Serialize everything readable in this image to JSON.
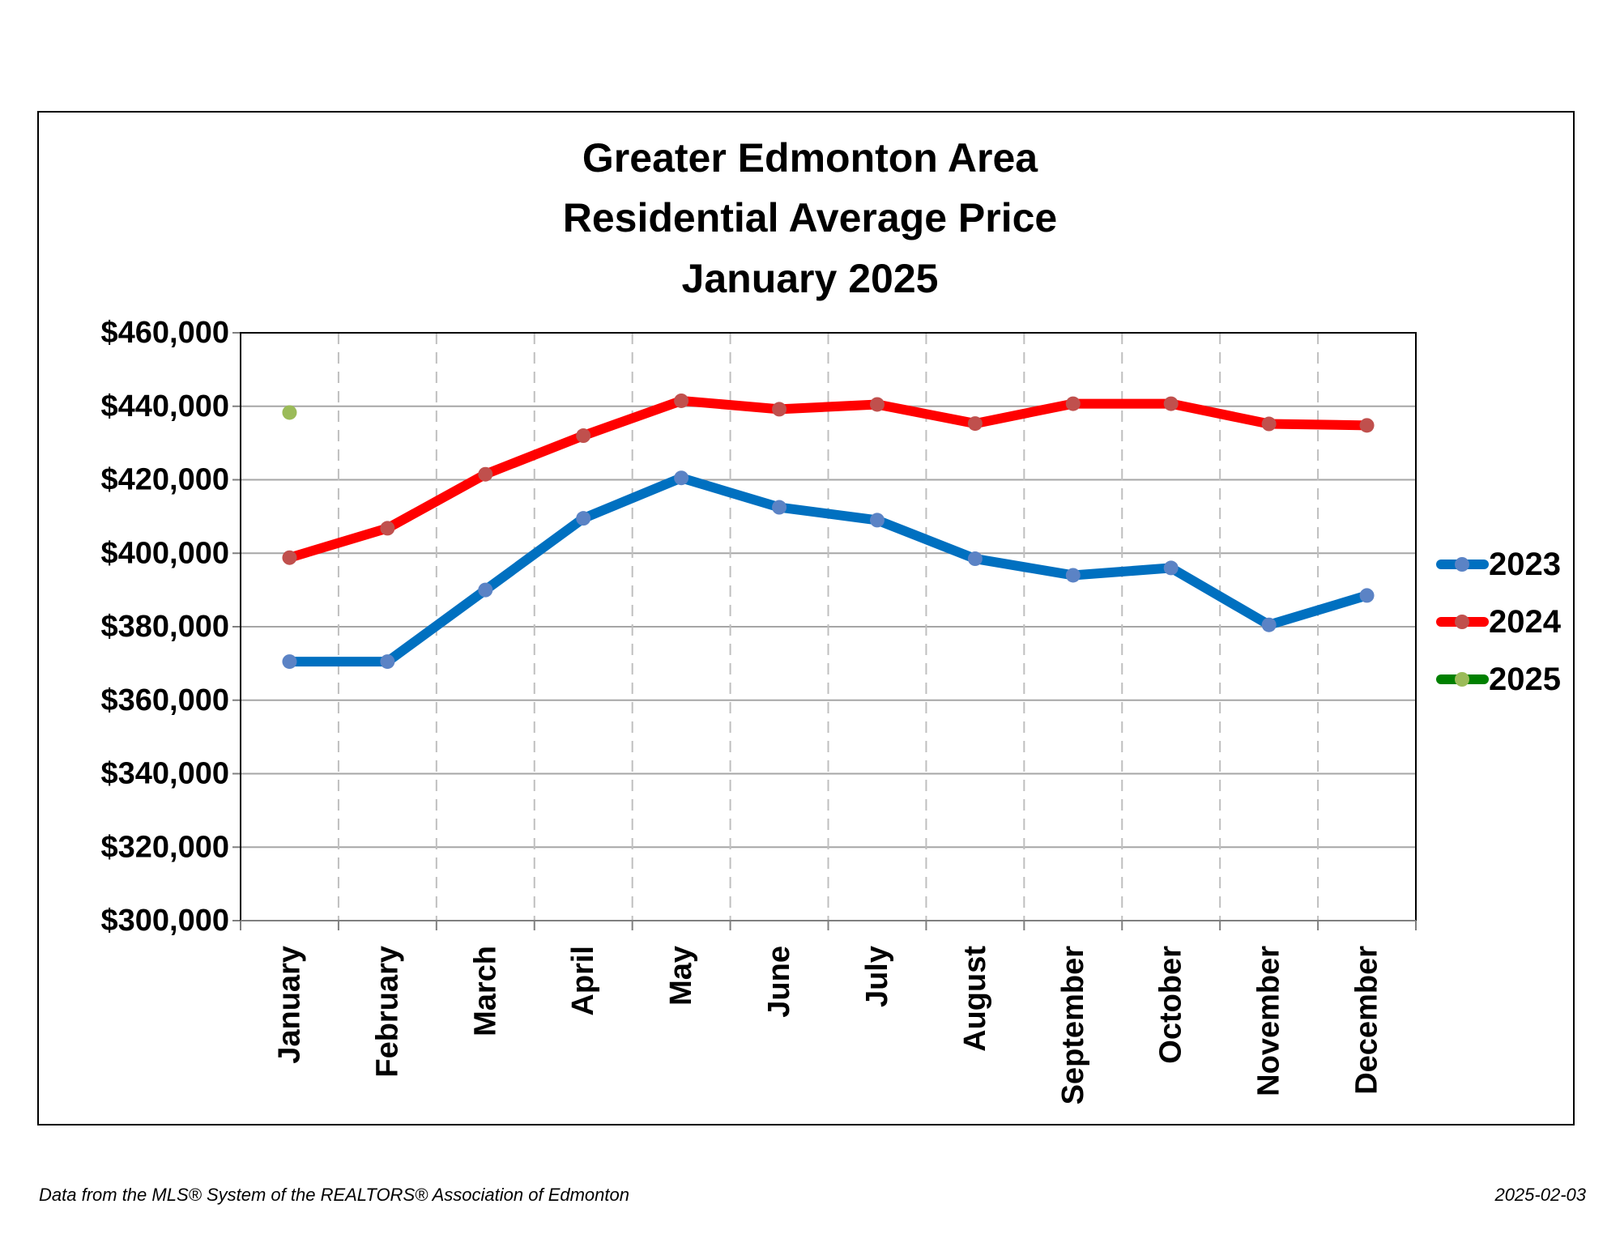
{
  "footer": {
    "source": "Data from the MLS® System of the REALTORS® Association of Edmonton",
    "date": "2025-02-03"
  },
  "chart_data": {
    "type": "line",
    "title_lines": [
      "Greater Edmonton Area",
      "Residential Average Price",
      "January 2025"
    ],
    "xlabel": "",
    "ylabel": "",
    "categories": [
      "January",
      "February",
      "March",
      "April",
      "May",
      "June",
      "July",
      "August",
      "September",
      "October",
      "November",
      "December"
    ],
    "ylim": [
      300000,
      460000
    ],
    "y_ticks": [
      300000,
      320000,
      340000,
      360000,
      380000,
      400000,
      420000,
      440000,
      460000
    ],
    "y_tick_labels": [
      "$300,000",
      "$320,000",
      "$340,000",
      "$360,000",
      "$380,000",
      "$400,000",
      "$420,000",
      "$440,000",
      "$460,000"
    ],
    "grid": {
      "horizontal": "solid",
      "vertical": "dashed"
    },
    "legend_position": "right",
    "series": [
      {
        "name": "2023",
        "line_color": "#0070C0",
        "marker_color": "#5B83C5",
        "values": [
          370500,
          370500,
          390000,
          409500,
          420500,
          412500,
          409000,
          398500,
          394000,
          396000,
          380500,
          388500
        ]
      },
      {
        "name": "2024",
        "line_color": "#FF0000",
        "marker_color": "#C0504D",
        "values": [
          398800,
          406800,
          421500,
          432000,
          441500,
          439200,
          440500,
          435300,
          440700,
          440700,
          435200,
          434800
        ]
      },
      {
        "name": "2025",
        "line_color": "#008000",
        "marker_color": "#9BBB59",
        "values": [
          438300,
          null,
          null,
          null,
          null,
          null,
          null,
          null,
          null,
          null,
          null,
          null
        ]
      }
    ]
  }
}
